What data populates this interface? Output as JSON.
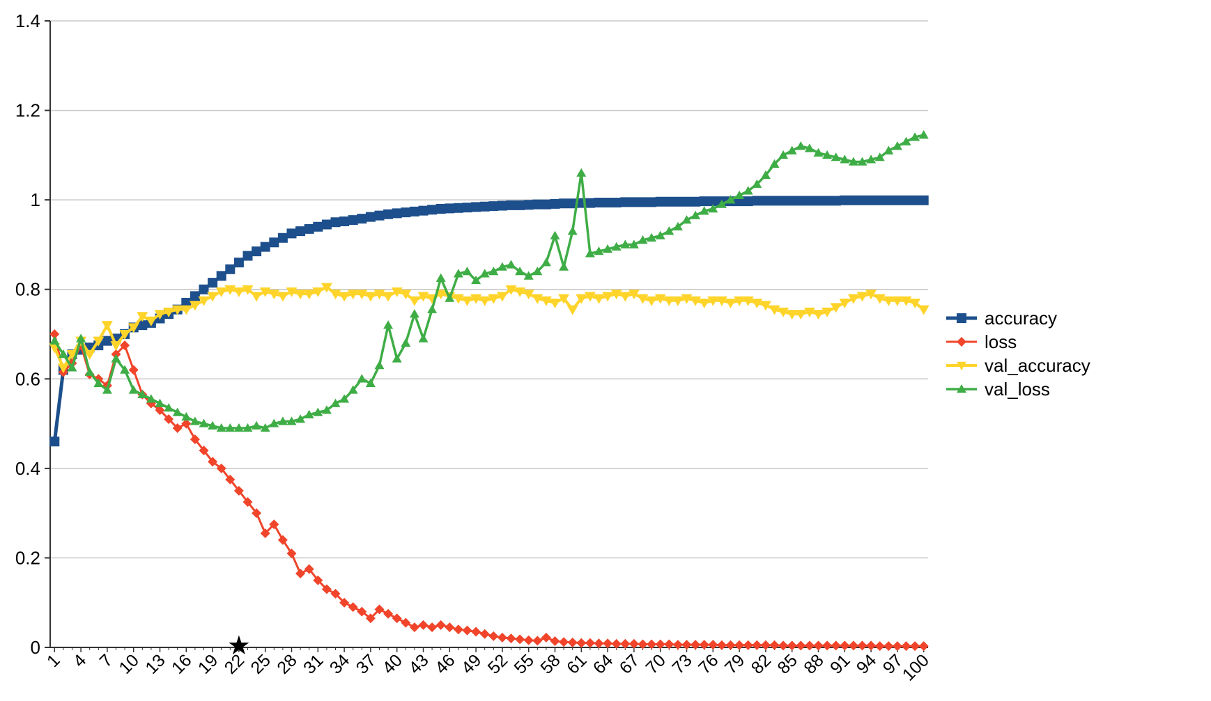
{
  "chart_data": {
    "type": "line",
    "title": "",
    "xlabel": "",
    "ylabel": "",
    "x_range": [
      1,
      100
    ],
    "x_categories_shown": [
      1,
      4,
      7,
      10,
      13,
      16,
      19,
      22,
      25,
      28,
      31,
      34,
      37,
      40,
      43,
      46,
      49,
      52,
      55,
      58,
      61,
      64,
      67,
      70,
      73,
      76,
      79,
      82,
      85,
      88,
      91,
      94,
      97,
      100
    ],
    "ylim": [
      0,
      1.4
    ],
    "y_ticks": [
      0,
      0.2,
      0.4,
      0.6,
      0.8,
      1,
      1.2,
      1.4
    ],
    "grid": "horizontal",
    "grid_color": "#c8c8c8",
    "axis_color": "#333333",
    "label_color": "#000000",
    "legend_position": "right",
    "marker_annotation": {
      "shape": "star",
      "x": 22,
      "y": 0,
      "color": "#000000",
      "glyph": "★"
    },
    "series": [
      {
        "name": "accuracy",
        "color": "#1D4F8C",
        "marker": "square",
        "line_width": 5,
        "marker_size": 7,
        "values": [
          0.46,
          0.62,
          0.655,
          0.665,
          0.67,
          0.675,
          0.685,
          0.69,
          0.7,
          0.715,
          0.72,
          0.725,
          0.735,
          0.745,
          0.755,
          0.77,
          0.785,
          0.8,
          0.815,
          0.83,
          0.845,
          0.86,
          0.875,
          0.885,
          0.895,
          0.905,
          0.915,
          0.925,
          0.93,
          0.935,
          0.94,
          0.945,
          0.95,
          0.952,
          0.955,
          0.958,
          0.962,
          0.965,
          0.968,
          0.97,
          0.972,
          0.974,
          0.976,
          0.978,
          0.98,
          0.981,
          0.982,
          0.983,
          0.984,
          0.985,
          0.986,
          0.987,
          0.988,
          0.988,
          0.989,
          0.99,
          0.99,
          0.991,
          0.992,
          0.992,
          0.993,
          0.993,
          0.994,
          0.994,
          0.994,
          0.995,
          0.995,
          0.995,
          0.995,
          0.996,
          0.996,
          0.996,
          0.996,
          0.996,
          0.997,
          0.997,
          0.997,
          0.997,
          0.997,
          0.997,
          0.998,
          0.998,
          0.998,
          0.998,
          0.998,
          0.998,
          0.998,
          0.998,
          0.998,
          0.998,
          0.999,
          0.999,
          0.999,
          0.999,
          0.999,
          0.999,
          0.999,
          0.999,
          0.999,
          0.999
        ]
      },
      {
        "name": "loss",
        "color": "#F0452B",
        "marker": "diamond",
        "line_width": 3,
        "marker_size": 7,
        "values": [
          0.7,
          0.615,
          0.635,
          0.675,
          0.61,
          0.6,
          0.585,
          0.655,
          0.675,
          0.62,
          0.565,
          0.545,
          0.53,
          0.51,
          0.49,
          0.5,
          0.465,
          0.44,
          0.415,
          0.4,
          0.375,
          0.35,
          0.325,
          0.3,
          0.255,
          0.275,
          0.24,
          0.21,
          0.165,
          0.175,
          0.15,
          0.13,
          0.12,
          0.1,
          0.09,
          0.08,
          0.065,
          0.085,
          0.075,
          0.065,
          0.055,
          0.045,
          0.05,
          0.045,
          0.05,
          0.045,
          0.04,
          0.038,
          0.035,
          0.03,
          0.025,
          0.022,
          0.02,
          0.018,
          0.016,
          0.015,
          0.022,
          0.014,
          0.012,
          0.011,
          0.01,
          0.01,
          0.009,
          0.009,
          0.008,
          0.008,
          0.008,
          0.007,
          0.007,
          0.007,
          0.007,
          0.006,
          0.006,
          0.006,
          0.006,
          0.006,
          0.005,
          0.005,
          0.005,
          0.005,
          0.005,
          0.005,
          0.005,
          0.004,
          0.004,
          0.004,
          0.004,
          0.004,
          0.004,
          0.004,
          0.004,
          0.004,
          0.004,
          0.004,
          0.003,
          0.003,
          0.003,
          0.003,
          0.003,
          0.003
        ]
      },
      {
        "name": "val_accuracy",
        "color": "#FFD42A",
        "marker": "triangle-down",
        "line_width": 4,
        "marker_size": 8,
        "values": [
          0.67,
          0.625,
          0.655,
          0.685,
          0.655,
          0.685,
          0.72,
          0.675,
          0.7,
          0.715,
          0.74,
          0.73,
          0.745,
          0.75,
          0.755,
          0.755,
          0.765,
          0.775,
          0.785,
          0.795,
          0.8,
          0.795,
          0.8,
          0.785,
          0.795,
          0.79,
          0.785,
          0.795,
          0.79,
          0.79,
          0.795,
          0.805,
          0.79,
          0.785,
          0.79,
          0.79,
          0.785,
          0.79,
          0.785,
          0.795,
          0.79,
          0.775,
          0.785,
          0.78,
          0.79,
          0.785,
          0.78,
          0.775,
          0.78,
          0.775,
          0.78,
          0.785,
          0.8,
          0.795,
          0.79,
          0.78,
          0.775,
          0.77,
          0.78,
          0.755,
          0.78,
          0.785,
          0.78,
          0.785,
          0.79,
          0.785,
          0.79,
          0.78,
          0.775,
          0.78,
          0.775,
          0.775,
          0.78,
          0.775,
          0.77,
          0.775,
          0.775,
          0.77,
          0.775,
          0.775,
          0.77,
          0.765,
          0.755,
          0.75,
          0.745,
          0.745,
          0.75,
          0.745,
          0.75,
          0.76,
          0.77,
          0.78,
          0.785,
          0.79,
          0.78,
          0.775,
          0.775,
          0.775,
          0.77,
          0.755
        ]
      },
      {
        "name": "val_loss",
        "color": "#3FAD46",
        "marker": "triangle-up",
        "line_width": 3.5,
        "marker_size": 7,
        "values": [
          0.685,
          0.655,
          0.625,
          0.69,
          0.615,
          0.59,
          0.575,
          0.645,
          0.62,
          0.575,
          0.565,
          0.555,
          0.545,
          0.535,
          0.525,
          0.515,
          0.505,
          0.5,
          0.495,
          0.49,
          0.49,
          0.49,
          0.49,
          0.495,
          0.49,
          0.5,
          0.505,
          0.505,
          0.51,
          0.52,
          0.525,
          0.53,
          0.545,
          0.555,
          0.575,
          0.6,
          0.59,
          0.63,
          0.72,
          0.645,
          0.68,
          0.745,
          0.69,
          0.755,
          0.825,
          0.78,
          0.835,
          0.84,
          0.82,
          0.835,
          0.84,
          0.85,
          0.855,
          0.84,
          0.83,
          0.84,
          0.86,
          0.92,
          0.85,
          0.93,
          1.06,
          0.88,
          0.885,
          0.89,
          0.895,
          0.9,
          0.9,
          0.91,
          0.915,
          0.92,
          0.93,
          0.94,
          0.955,
          0.965,
          0.975,
          0.98,
          0.99,
          1.0,
          1.01,
          1.02,
          1.035,
          1.055,
          1.08,
          1.1,
          1.11,
          1.12,
          1.115,
          1.105,
          1.1,
          1.095,
          1.09,
          1.085,
          1.085,
          1.09,
          1.095,
          1.11,
          1.12,
          1.13,
          1.14,
          1.145
        ]
      }
    ],
    "legend": {
      "items": [
        "accuracy",
        "loss",
        "val_accuracy",
        "val_loss"
      ]
    }
  }
}
